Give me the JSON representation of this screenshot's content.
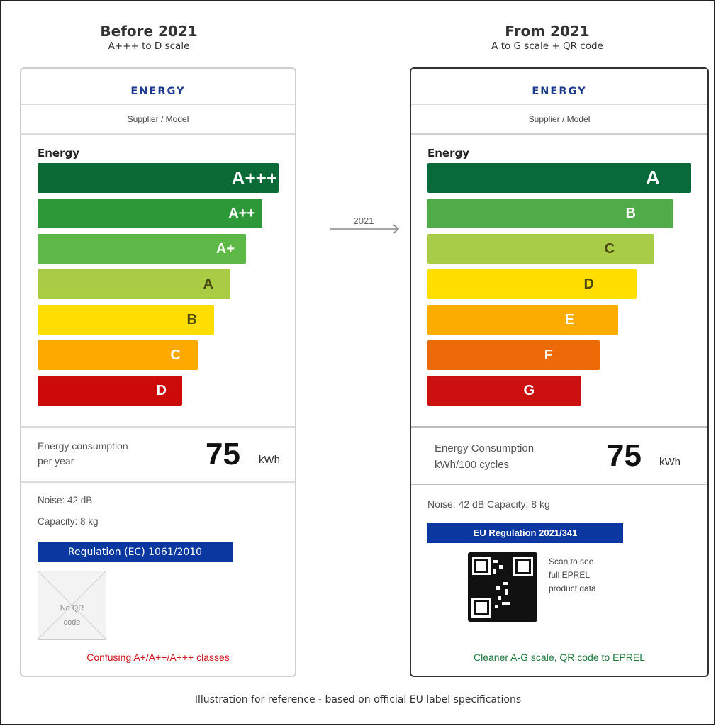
{
  "left": {
    "heading": "Before 2021",
    "subheading": "A+++ to D scale",
    "energy_header": "ENERGY",
    "supplier": "Supplier / Model",
    "energy_title": "Energy",
    "classes": [
      {
        "label": "A+++",
        "color": "#0a6b37",
        "text_color": "#ffffff"
      },
      {
        "label": "A++",
        "color": "#2d9837",
        "text_color": "#ffffff"
      },
      {
        "label": "A+",
        "color": "#5db847",
        "text_color": "#ffffff"
      },
      {
        "label": "A",
        "color": "#a9cc44",
        "text_color": "#4a4a10"
      },
      {
        "label": "B",
        "color": "#ffdd00",
        "text_color": "#4a4a10"
      },
      {
        "label": "C",
        "color": "#fcaa00",
        "text_color": "#ffffff"
      },
      {
        "label": "D",
        "color": "#cc0a0a",
        "text_color": "#ffffff"
      }
    ],
    "consumption_line1": "Energy consumption",
    "consumption_line2": "per year",
    "consumption_value": "75",
    "consumption_unit": "kWh",
    "noise": "Noise: 42 dB",
    "capacity": "Capacity: 8 kg",
    "regulation": "Regulation (EC) 1061/2010",
    "noqr_line1": "No QR",
    "noqr_line2": "code",
    "footnote": "Confusing A+/A++/A+++ classes",
    "footnote_color": "#d0141a"
  },
  "arrow_label": "2021",
  "right": {
    "heading": "From 2021",
    "subheading": "A to G scale + QR code",
    "energy_header": "ENERGY",
    "supplier": "Supplier / Model",
    "energy_title": "Energy",
    "classes": [
      {
        "label": "A",
        "color": "#08693a",
        "text_color": "#ffffff"
      },
      {
        "label": "B",
        "color": "#4fac48",
        "text_color": "#ffffff"
      },
      {
        "label": "C",
        "color": "#a8cc48",
        "text_color": "#4a4a10"
      },
      {
        "label": "D",
        "color": "#ffde00",
        "text_color": "#4a4a10"
      },
      {
        "label": "E",
        "color": "#fcab00",
        "text_color": "#ffffff"
      },
      {
        "label": "F",
        "color": "#ec6a08",
        "text_color": "#ffffff"
      },
      {
        "label": "G",
        "color": "#cc0f0f",
        "text_color": "#ffffff"
      }
    ],
    "consumption_line1": "Energy Consumption",
    "consumption_line2": "kWh/100 cycles",
    "consumption_value": "75",
    "consumption_unit": "kWh",
    "noise_capacity": "Noise: 42 dB Capacity: 8 kg",
    "regulation": "EU Regulation 2021/341",
    "qr_line1": "Scan to see",
    "qr_line2": "full EPREL",
    "qr_line3": "product data",
    "footnote": "Cleaner A-G scale, QR code to EPREL",
    "footnote_color": "#1f7a3a"
  },
  "caption": "Illustration for reference - based on official EU label specifications"
}
